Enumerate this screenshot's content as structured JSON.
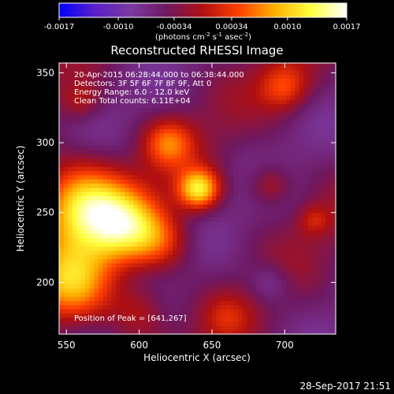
{
  "chart_data": {
    "type": "heatmap",
    "title": "Reconstructed RHESSI Image",
    "xlabel": "Heliocentric X (arcsec)",
    "ylabel": "Heliocentric Y (arcsec)",
    "xlim": [
      545,
      735
    ],
    "ylim": [
      163,
      357
    ],
    "x_ticks": [
      550,
      600,
      650,
      700
    ],
    "y_ticks": [
      200,
      250,
      300,
      350
    ],
    "colorbar": {
      "range": [
        -0.0017,
        0.0017
      ],
      "tick_values": [
        -0.0017,
        -0.001,
        -0.00034,
        0.00034,
        0.001,
        0.0017
      ],
      "tick_labels": [
        "-0.0017",
        "-0.0010",
        "-0.00034",
        "0.00034",
        "0.0010",
        "0.0017"
      ],
      "units_prefix": "(photons cm",
      "units_sup1": "-2",
      "units_mid": " s",
      "units_sup2": "-1",
      "units_mid2": " asec",
      "units_sup3": "-2",
      "units_suffix": ")",
      "colors": [
        "#0000ff",
        "#5a20c8",
        "#7a3aa0",
        "#6e1860",
        "#b01010",
        "#ff4000",
        "#ffb000",
        "#ffff40",
        "#ffffff"
      ]
    },
    "annotations": {
      "time": "20-Apr-2015 06:28:44.000 to 06:38:44.000",
      "detectors": "Detectors: 3F 5F 6F 7F 8F 9F, Att 0",
      "energy": "Energy Range: 6.0 - 12.0 keV",
      "clean": "Clean    Total counts: 6.11E+04",
      "peak": "Position of Peak = [641,267]"
    },
    "peak": [
      641,
      267
    ],
    "sources": [
      {
        "x": 560,
        "y": 255,
        "sigma": 22,
        "amp": 0.0016
      },
      {
        "x": 590,
        "y": 240,
        "sigma": 18,
        "amp": 0.0012
      },
      {
        "x": 555,
        "y": 200,
        "sigma": 20,
        "amp": 0.0012
      },
      {
        "x": 641,
        "y": 267,
        "sigma": 10,
        "amp": 0.0016
      },
      {
        "x": 620,
        "y": 300,
        "sigma": 12,
        "amp": 0.0009
      },
      {
        "x": 615,
        "y": 230,
        "sigma": 15,
        "amp": 0.0007
      },
      {
        "x": 600,
        "y": 180,
        "sigma": 14,
        "amp": 0.0006
      },
      {
        "x": 700,
        "y": 340,
        "sigma": 12,
        "amp": 0.0008
      },
      {
        "x": 690,
        "y": 270,
        "sigma": 10,
        "amp": 0.0006
      },
      {
        "x": 720,
        "y": 245,
        "sigma": 8,
        "amp": 0.0005
      },
      {
        "x": 560,
        "y": 330,
        "sigma": 10,
        "amp": 0.0005
      },
      {
        "x": 660,
        "y": 175,
        "sigma": 12,
        "amp": 0.0004
      },
      {
        "x": 690,
        "y": 200,
        "sigma": 10,
        "amp": -0.0004
      }
    ]
  },
  "footer": {
    "date": "28-Sep-2017 21:51"
  }
}
